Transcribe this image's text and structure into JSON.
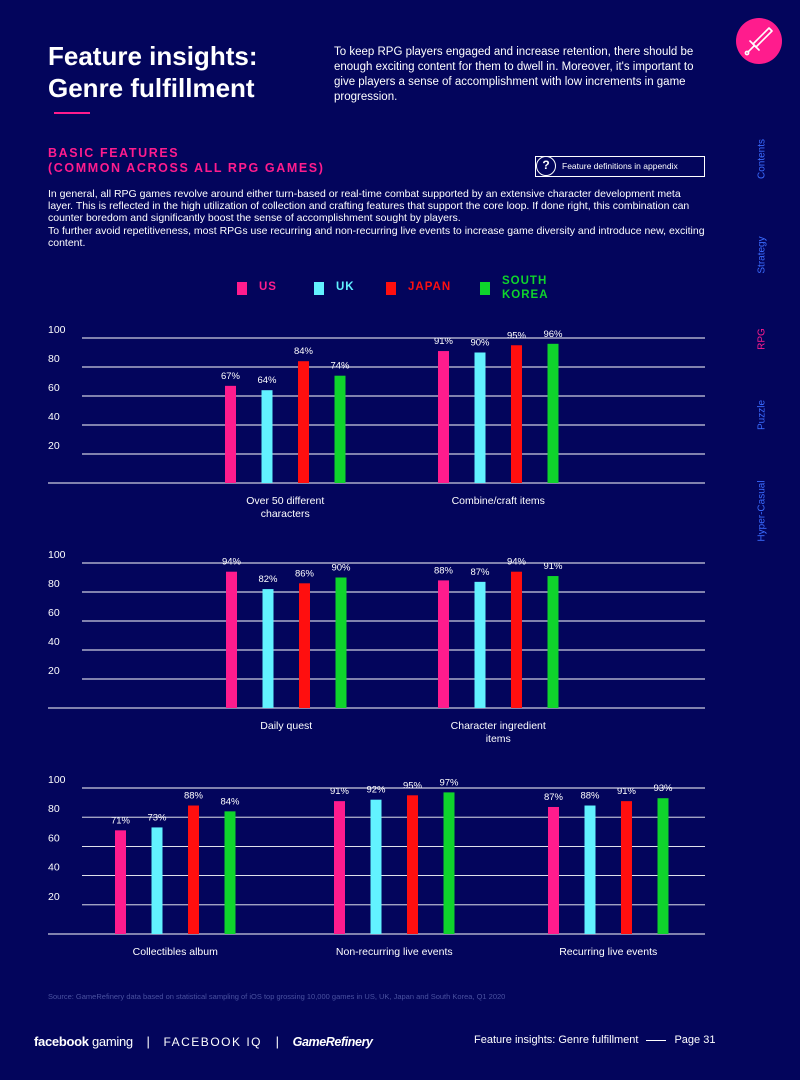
{
  "header": {
    "title_line1": "Feature insights:",
    "title_line2": "Genre fulfillment",
    "intro_text": "To keep RPG players engaged and increase retention, there should be enough exciting content for them to dwell in. Moreover, it's important to give players a sense of accomplishment with low increments in game progression.",
    "icon": "sword-icon"
  },
  "section": {
    "title_line1": "BASIC FEATURES",
    "title_line2": "(COMMON ACROSS ALL RPG GAMES)",
    "appendix_label": "Feature definitions in appendix",
    "appendix_icon": "question-icon",
    "body_p1": "In general, all RPG games revolve around either turn-based or real-time combat supported by an extensive character development meta layer. This is reflected in the high utilization of collection and crafting features that support the core loop. If done right, this combination can counter boredom and significantly boost the sense of accomplishment sought by players.",
    "body_p2": "To further avoid repetitiveness, most RPGs use recurring and non-recurring live events to increase game diversity and introduce new, exciting content."
  },
  "sidenav": {
    "items": [
      {
        "label": "Contents"
      },
      {
        "label": "Strategy"
      },
      {
        "label": "RPG"
      },
      {
        "label": "Puzzle"
      },
      {
        "label": "Hyper-Casual"
      }
    ]
  },
  "legend": [
    {
      "label": "US",
      "color": "#ff1c8d"
    },
    {
      "label": "UK",
      "color": "#62f2ff"
    },
    {
      "label": "JAPAN",
      "color": "#ff0f0f"
    },
    {
      "label": "SOUTH KOREA",
      "label_line1": "SOUTH",
      "label_line2": "KOREA",
      "color": "#0fd42c"
    }
  ],
  "chart_data": {
    "type": "bar",
    "unit": "%",
    "ylim": [
      0,
      100
    ],
    "yticks": [
      "20",
      "40",
      "60",
      "80",
      "100"
    ],
    "series": [
      {
        "name": "US",
        "color": "#ff1c8d"
      },
      {
        "name": "UK",
        "color": "#62f2ff"
      },
      {
        "name": "JAPAN",
        "color": "#ff0f0f"
      },
      {
        "name": "SOUTH KOREA",
        "color": "#0fd42c"
      }
    ],
    "charts": [
      {
        "groups": [
          {
            "category": "Over 50 different characters",
            "label_lines": [
              "Over 50 different",
              "characters"
            ],
            "values": [
              67,
              64,
              84,
              74
            ]
          },
          {
            "category": "Combine/craft items",
            "label_lines": [
              "Combine/craft items"
            ],
            "values": [
              91,
              90,
              95,
              96
            ]
          }
        ]
      },
      {
        "groups": [
          {
            "category": "Daily quest",
            "label_lines": [
              "Daily quest"
            ],
            "values": [
              94,
              82,
              86,
              90
            ]
          },
          {
            "category": "Character ingredient items",
            "label_lines": [
              "Character ingredient",
              "items"
            ],
            "values": [
              88,
              87,
              94,
              91
            ]
          }
        ]
      },
      {
        "groups": [
          {
            "category": "Collectibles album",
            "label_lines": [
              "Collectibles album"
            ],
            "values": [
              71,
              73,
              88,
              84
            ]
          },
          {
            "category": "Non-recurring live events",
            "label_lines": [
              "Non-recurring live events"
            ],
            "values": [
              91,
              92,
              95,
              97
            ]
          },
          {
            "category": "Recurring live events",
            "label_lines": [
              "Recurring live events"
            ],
            "values": [
              87,
              88,
              91,
              93
            ]
          }
        ]
      }
    ]
  },
  "footer": {
    "source": "Source: GameRefinery data based on statistical sampling of iOS top grossing 10,000 games in US, UK, Japan and South Korea, Q1 2020",
    "brand_fb_bold": "facebook",
    "brand_fb_light": "gaming",
    "brand_iq": "FACEBOOK IQ",
    "brand_gr": "GameRefinery",
    "page_title": "Feature insights: Genre fulfillment",
    "page_number": "Page 31"
  }
}
